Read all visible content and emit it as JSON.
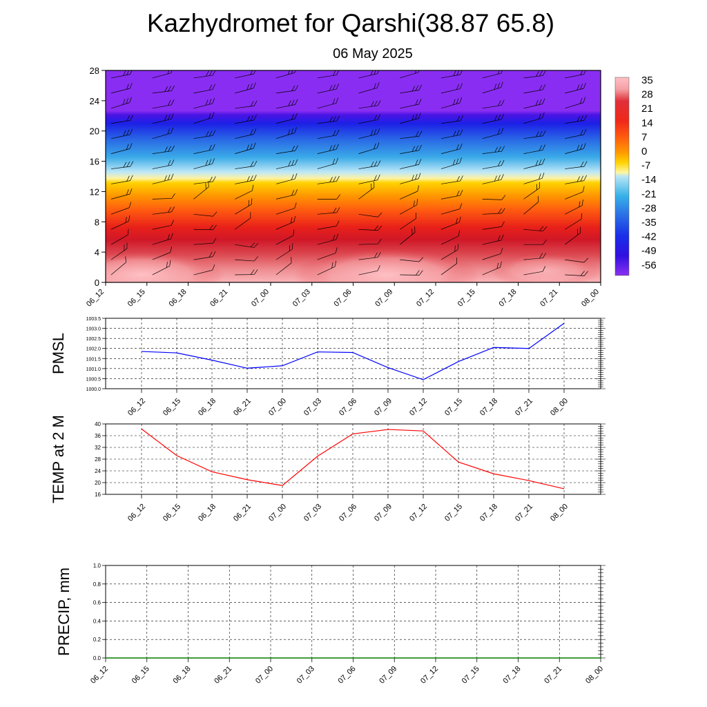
{
  "title": "Kazhydromet for Qarshi(38.87 65.8)",
  "subtitle": "06 May 2025",
  "colors": {
    "pmsl_line": "#0000ff",
    "temp_line": "#ff0000",
    "precip_line": "#007a00"
  },
  "chart_data": [
    {
      "type": "heatmap",
      "name": "vertical-cross-section",
      "x_ticks": [
        "06_12",
        "06_15",
        "06_18",
        "06_21",
        "07_00",
        "07_03",
        "07_06",
        "07_09",
        "07_12",
        "07_15",
        "07_18",
        "07_21",
        "08_00"
      ],
      "y_ticks": [
        0,
        4,
        8,
        12,
        16,
        20,
        24,
        28
      ],
      "ylim": [
        0,
        28
      ],
      "colorbar_labels": [
        "35",
        "28",
        "21",
        "14",
        "7",
        "0",
        "-7",
        "-14",
        "-21",
        "-28",
        "-35",
        "-42",
        "-49",
        "-56"
      ],
      "colorbar_colors": [
        "#ffc0c6",
        "#f4a0a4",
        "#e0303a",
        "#f02818",
        "#ff5a10",
        "#ff9a00",
        "#ffd400",
        "#fff6a0",
        "#b8e6f5",
        "#36b0e8",
        "#2a6ce6",
        "#1a2ee8",
        "#3010e0",
        "#8a30f0"
      ],
      "overlay": "wind barbs",
      "grid": false
    },
    {
      "type": "line",
      "ylabel": "PMSL",
      "x": [
        "06_12",
        "06_15",
        "06_18",
        "06_21",
        "07_00",
        "07_03",
        "07_06",
        "07_09",
        "07_12",
        "07_15",
        "07_18",
        "07_21",
        "08_00"
      ],
      "y_ticks": [
        "1000.0",
        "1000.5",
        "1001.0",
        "1001.5",
        "1002.0",
        "1002.5",
        "1003.0",
        "1003.5"
      ],
      "ylim": [
        1000.0,
        1003.5
      ],
      "series": [
        {
          "values": [
            1001.85,
            1001.78,
            1001.42,
            1001.02,
            1001.14,
            1001.83,
            1001.8,
            1001.05,
            1000.45,
            1001.35,
            1002.05,
            1002.0,
            1003.25
          ]
        }
      ],
      "grid": true
    },
    {
      "type": "line",
      "ylabel": "TEMP at 2 M",
      "x": [
        "06_12",
        "06_15",
        "06_18",
        "06_21",
        "07_00",
        "07_03",
        "07_06",
        "07_09",
        "07_12",
        "07_15",
        "07_18",
        "07_21",
        "08_00"
      ],
      "y_ticks": [
        "16",
        "20",
        "24",
        "28",
        "32",
        "36",
        "40"
      ],
      "ylim": [
        16,
        40
      ],
      "series": [
        {
          "values": [
            38.3,
            29.2,
            23.7,
            21.0,
            19.0,
            29.0,
            36.6,
            38.1,
            37.6,
            27.0,
            23.0,
            20.7,
            17.9
          ]
        }
      ],
      "grid": true
    },
    {
      "type": "line",
      "ylabel": "PRECIP, mm",
      "x": [
        "06_12",
        "06_15",
        "06_18",
        "06_21",
        "07_00",
        "07_03",
        "07_06",
        "07_09",
        "07_12",
        "07_15",
        "07_18",
        "07_21",
        "08_00"
      ],
      "y_ticks": [
        "0.0",
        "0.2",
        "0.4",
        "0.6",
        "0.8",
        "1.0"
      ],
      "ylim": [
        0.0,
        1.0
      ],
      "series": [
        {
          "values": [
            0,
            0,
            0,
            0,
            0,
            0,
            0,
            0,
            0,
            0,
            0,
            0,
            0
          ]
        }
      ],
      "grid": true
    }
  ]
}
